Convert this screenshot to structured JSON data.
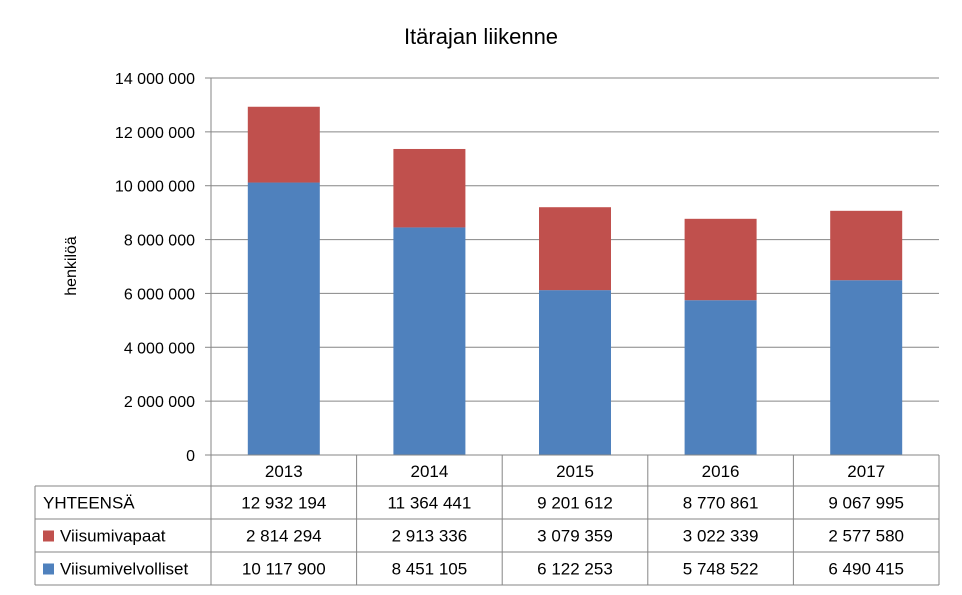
{
  "chart_data": {
    "type": "bar",
    "stacked": true,
    "title": "Itärajan liikenne",
    "ylabel": "henkilöä",
    "xlabel": "",
    "categories": [
      "2013",
      "2014",
      "2015",
      "2016",
      "2017"
    ],
    "ylim": [
      0,
      14000000
    ],
    "yticks": [
      0,
      2000000,
      4000000,
      6000000,
      8000000,
      10000000,
      12000000,
      14000000
    ],
    "ytick_labels": [
      "0",
      "2 000 000",
      "4 000 000",
      "6 000 000",
      "8 000 000",
      "10 000 000",
      "12 000 000",
      "14 000 000"
    ],
    "grid": true,
    "series": [
      {
        "name": "Viisumivelvolliset",
        "color": "#4F81BD",
        "values": [
          10117900,
          8451105,
          6122253,
          5748522,
          6490415
        ]
      },
      {
        "name": "Viisumivapaat",
        "color": "#C0504D",
        "values": [
          2814294,
          2913336,
          3079359,
          3022339,
          2577580
        ]
      }
    ],
    "table": {
      "rows": [
        {
          "label": "YHTEENSÄ",
          "marker": "",
          "cells": [
            "12 932 194",
            "11 364 441",
            "9 201 612",
            "8 770 861",
            "9 067 995"
          ]
        },
        {
          "label": "Viisumivapaat",
          "marker": "#C0504D",
          "cells": [
            "2 814 294",
            "2 913 336",
            "3 079 359",
            "3 022 339",
            "2 577 580"
          ]
        },
        {
          "label": "Viisumivelvolliset",
          "marker": "#4F81BD",
          "cells": [
            "10 117 900",
            "8 451 105",
            "6 122 253",
            "5 748 522",
            "6 490 415"
          ]
        }
      ]
    }
  }
}
